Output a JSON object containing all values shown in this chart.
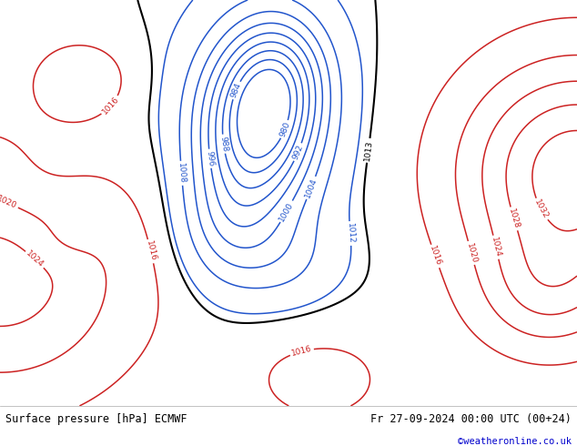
{
  "title_left": "Surface pressure [hPa] ECMWF",
  "title_right": "Fr 27-09-2024 00:00 UTC (00+24)",
  "credit": "©weatheronline.co.uk",
  "credit_color": "#0000cc",
  "land_color": "#aad4a0",
  "sea_color": "#d8d8d8",
  "footer_bg": "#ffffff",
  "footer_text_color": "#000000",
  "fig_width": 6.34,
  "fig_height": 4.9,
  "dpi": 100,
  "map_lon_min": -30,
  "map_lon_max": 42,
  "map_lat_min": 25,
  "map_lat_max": 72,
  "pressure_levels_blue": [
    980,
    984,
    988,
    992,
    996,
    1000,
    1004,
    1008,
    1012
  ],
  "pressure_levels_red": [
    1016,
    1020,
    1024,
    1028,
    1032
  ],
  "pressure_level_black": [
    1013
  ],
  "blue_color": "#2255cc",
  "red_color": "#cc2222",
  "black_color": "#000000",
  "label_fontsize": 6.5,
  "footer_fontsize": 8.5
}
